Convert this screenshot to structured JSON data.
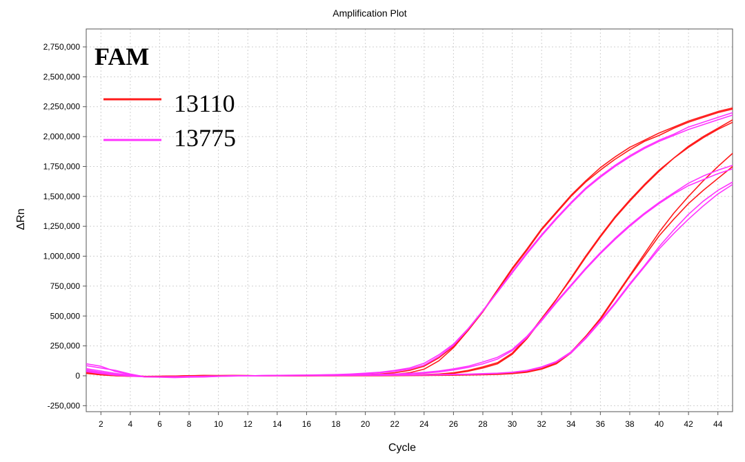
{
  "chart_data": {
    "type": "line",
    "title": "Amplification Plot",
    "xlabel": "Cycle",
    "ylabel": "ΔRn",
    "xlim": [
      1,
      45
    ],
    "ylim": [
      -300000,
      2900000
    ],
    "xticks": [
      2,
      4,
      6,
      8,
      10,
      12,
      14,
      16,
      18,
      20,
      22,
      24,
      26,
      28,
      30,
      32,
      34,
      36,
      38,
      40,
      42,
      44
    ],
    "yticks": [
      -250000,
      0,
      250000,
      500000,
      750000,
      1000000,
      1250000,
      1500000,
      1750000,
      2000000,
      2250000,
      2500000,
      2750000
    ],
    "ytick_labels": [
      "-250,000",
      "0",
      "250,000",
      "500,000",
      "750,000",
      "1,000,000",
      "1,250,000",
      "1,500,000",
      "1,750,000",
      "2,000,000",
      "2,250,000",
      "2,500,000",
      "2,750,000"
    ],
    "grid": true,
    "dye_label": "FAM",
    "legend_position": "top-left",
    "legend": [
      {
        "name": "13110",
        "color": "#ff1a1a"
      },
      {
        "name": "13775",
        "color": "#ff33ff"
      }
    ],
    "series": [
      {
        "group": "13110",
        "color": "#ff1a1a",
        "x": [
          1,
          2,
          3,
          4,
          5,
          6,
          7,
          8,
          9,
          10,
          11,
          12,
          13,
          14,
          15,
          16,
          17,
          18,
          19,
          20,
          21,
          22,
          23,
          24,
          25,
          26,
          27,
          28,
          29,
          30,
          31,
          32,
          33,
          34,
          35,
          36,
          37,
          38,
          39,
          40,
          41,
          42,
          43,
          44,
          45
        ],
        "y": [
          40000,
          25000,
          12000,
          5000,
          -5000,
          -8000,
          -5000,
          0,
          3000,
          2000,
          3000,
          2000,
          0,
          3000,
          1000,
          2000,
          3000,
          4000,
          6000,
          10000,
          15000,
          25000,
          45000,
          80000,
          150000,
          245000,
          380000,
          535000,
          710000,
          890000,
          1050000,
          1220000,
          1360000,
          1500000,
          1620000,
          1720000,
          1810000,
          1890000,
          1960000,
          2010000,
          2070000,
          2120000,
          2160000,
          2200000,
          2230000
        ]
      },
      {
        "group": "13110",
        "color": "#ff1a1a",
        "x": [
          1,
          2,
          3,
          4,
          5,
          6,
          7,
          8,
          9,
          10,
          11,
          12,
          13,
          14,
          15,
          16,
          17,
          18,
          19,
          20,
          21,
          22,
          23,
          24,
          25,
          26,
          27,
          28,
          29,
          30,
          31,
          32,
          33,
          34,
          35,
          36,
          37,
          38,
          39,
          40,
          41,
          42,
          43,
          44,
          45
        ],
        "y": [
          30000,
          15000,
          5000,
          0,
          -6000,
          -6000,
          -3000,
          1000,
          2000,
          1000,
          2000,
          1000,
          0,
          2000,
          1000,
          1000,
          2000,
          3000,
          4000,
          6000,
          8000,
          12000,
          25000,
          55000,
          125000,
          235000,
          380000,
          540000,
          720000,
          900000,
          1060000,
          1230000,
          1370000,
          1510000,
          1630000,
          1740000,
          1830000,
          1910000,
          1970000,
          2030000,
          2080000,
          2130000,
          2170000,
          2210000,
          2240000
        ]
      },
      {
        "group": "13110",
        "color": "#ff1a1a",
        "x": [
          1,
          2,
          3,
          4,
          5,
          6,
          7,
          8,
          9,
          10,
          11,
          12,
          13,
          14,
          15,
          16,
          17,
          18,
          19,
          20,
          21,
          22,
          23,
          24,
          25,
          26,
          27,
          28,
          29,
          30,
          31,
          32,
          33,
          34,
          35,
          36,
          37,
          38,
          39,
          40,
          41,
          42,
          43,
          44,
          45
        ],
        "y": [
          25000,
          10000,
          2000,
          -3000,
          -5000,
          -4000,
          -2000,
          0,
          1000,
          1000,
          1000,
          1000,
          0,
          1000,
          0,
          1000,
          1000,
          1000,
          2000,
          2000,
          3000,
          4000,
          6000,
          10000,
          15000,
          25000,
          45000,
          75000,
          110000,
          190000,
          320000,
          480000,
          640000,
          820000,
          1000000,
          1170000,
          1330000,
          1470000,
          1600000,
          1720000,
          1820000,
          1920000,
          2000000,
          2070000,
          2140000
        ]
      },
      {
        "group": "13110",
        "color": "#ff1a1a",
        "x": [
          1,
          2,
          3,
          4,
          5,
          6,
          7,
          8,
          9,
          10,
          11,
          12,
          13,
          14,
          15,
          16,
          17,
          18,
          19,
          20,
          21,
          22,
          23,
          24,
          25,
          26,
          27,
          28,
          29,
          30,
          31,
          32,
          33,
          34,
          35,
          36,
          37,
          38,
          39,
          40,
          41,
          42,
          43,
          44,
          45
        ],
        "y": [
          20000,
          8000,
          0,
          -4000,
          -6000,
          -5000,
          -3000,
          0,
          1000,
          0,
          1000,
          0,
          -1000,
          1000,
          0,
          0,
          1000,
          1000,
          1000,
          2000,
          2000,
          3000,
          5000,
          8000,
          12000,
          20000,
          38000,
          65000,
          100000,
          180000,
          310000,
          470000,
          640000,
          810000,
          990000,
          1160000,
          1320000,
          1460000,
          1590000,
          1710000,
          1820000,
          1910000,
          1990000,
          2060000,
          2120000
        ]
      },
      {
        "group": "13110",
        "color": "#ff1a1a",
        "x": [
          1,
          2,
          3,
          4,
          5,
          6,
          7,
          8,
          9,
          10,
          11,
          12,
          13,
          14,
          15,
          16,
          17,
          18,
          19,
          20,
          21,
          22,
          23,
          24,
          25,
          26,
          27,
          28,
          29,
          30,
          31,
          32,
          33,
          34,
          35,
          36,
          37,
          38,
          39,
          40,
          41,
          42,
          43,
          44,
          45
        ],
        "y": [
          30000,
          12000,
          3000,
          -2000,
          -5000,
          -5000,
          -3000,
          0,
          1000,
          1000,
          1000,
          1000,
          0,
          1000,
          0,
          1000,
          1000,
          1000,
          1000,
          1000,
          1000,
          2000,
          3000,
          4000,
          5000,
          6000,
          8000,
          10000,
          14000,
          20000,
          35000,
          60000,
          110000,
          200000,
          330000,
          480000,
          660000,
          840000,
          1020000,
          1200000,
          1360000,
          1500000,
          1630000,
          1750000,
          1860000
        ]
      },
      {
        "group": "13110",
        "color": "#ff1a1a",
        "x": [
          1,
          2,
          3,
          4,
          5,
          6,
          7,
          8,
          9,
          10,
          11,
          12,
          13,
          14,
          15,
          16,
          17,
          18,
          19,
          20,
          21,
          22,
          23,
          24,
          25,
          26,
          27,
          28,
          29,
          30,
          31,
          32,
          33,
          34,
          35,
          36,
          37,
          38,
          39,
          40,
          41,
          42,
          43,
          44,
          45
        ],
        "y": [
          22000,
          8000,
          1000,
          -3000,
          -5000,
          -4000,
          -2000,
          0,
          1000,
          0,
          1000,
          0,
          0,
          1000,
          0,
          0,
          1000,
          1000,
          1000,
          1000,
          1000,
          1000,
          2000,
          3000,
          4000,
          5000,
          7000,
          9000,
          12000,
          18000,
          30000,
          55000,
          100000,
          190000,
          320000,
          470000,
          650000,
          830000,
          1000000,
          1170000,
          1310000,
          1440000,
          1550000,
          1650000,
          1750000
        ]
      },
      {
        "group": "13775",
        "color": "#ff33ff",
        "x": [
          1,
          2,
          3,
          4,
          5,
          6,
          7,
          8,
          9,
          10,
          11,
          12,
          13,
          14,
          15,
          16,
          17,
          18,
          19,
          20,
          21,
          22,
          23,
          24,
          25,
          26,
          27,
          28,
          29,
          30,
          31,
          32,
          33,
          34,
          35,
          36,
          37,
          38,
          39,
          40,
          41,
          42,
          43,
          44,
          45
        ],
        "y": [
          100000,
          80000,
          35000,
          10000,
          -10000,
          -12000,
          -15000,
          -12000,
          -10000,
          -5000,
          -2000,
          0,
          2000,
          4000,
          5000,
          6000,
          8000,
          10000,
          15000,
          22000,
          30000,
          45000,
          65000,
          105000,
          175000,
          265000,
          395000,
          545000,
          705000,
          870000,
          1030000,
          1180000,
          1320000,
          1450000,
          1570000,
          1670000,
          1760000,
          1840000,
          1910000,
          1970000,
          2020000,
          2080000,
          2120000,
          2160000,
          2200000
        ]
      },
      {
        "group": "13775",
        "color": "#ff33ff",
        "x": [
          1,
          2,
          3,
          4,
          5,
          6,
          7,
          8,
          9,
          10,
          11,
          12,
          13,
          14,
          15,
          16,
          17,
          18,
          19,
          20,
          21,
          22,
          23,
          24,
          25,
          26,
          27,
          28,
          29,
          30,
          31,
          32,
          33,
          34,
          35,
          36,
          37,
          38,
          39,
          40,
          41,
          42,
          43,
          44,
          45
        ],
        "y": [
          85000,
          65000,
          45000,
          15000,
          -8000,
          -10000,
          -12000,
          -10000,
          -8000,
          -4000,
          -2000,
          0,
          2000,
          3000,
          4000,
          5000,
          7000,
          9000,
          12000,
          18000,
          25000,
          38000,
          55000,
          90000,
          160000,
          255000,
          390000,
          540000,
          700000,
          860000,
          1020000,
          1170000,
          1310000,
          1440000,
          1560000,
          1660000,
          1750000,
          1830000,
          1900000,
          1960000,
          2010000,
          2060000,
          2100000,
          2140000,
          2180000
        ]
      },
      {
        "group": "13775",
        "color": "#ff33ff",
        "x": [
          1,
          2,
          3,
          4,
          5,
          6,
          7,
          8,
          9,
          10,
          11,
          12,
          13,
          14,
          15,
          16,
          17,
          18,
          19,
          20,
          21,
          22,
          23,
          24,
          25,
          26,
          27,
          28,
          29,
          30,
          31,
          32,
          33,
          34,
          35,
          36,
          37,
          38,
          39,
          40,
          41,
          42,
          43,
          44,
          45
        ],
        "y": [
          60000,
          40000,
          20000,
          5000,
          -8000,
          -10000,
          -10000,
          -8000,
          -6000,
          -3000,
          -1000,
          0,
          1000,
          2000,
          3000,
          4000,
          5000,
          6000,
          8000,
          10000,
          12000,
          15000,
          20000,
          28000,
          40000,
          58000,
          80000,
          115000,
          155000,
          220000,
          330000,
          470000,
          620000,
          760000,
          900000,
          1030000,
          1150000,
          1260000,
          1360000,
          1450000,
          1530000,
          1610000,
          1670000,
          1720000,
          1760000
        ]
      },
      {
        "group": "13775",
        "color": "#ff33ff",
        "x": [
          1,
          2,
          3,
          4,
          5,
          6,
          7,
          8,
          9,
          10,
          11,
          12,
          13,
          14,
          15,
          16,
          17,
          18,
          19,
          20,
          21,
          22,
          23,
          24,
          25,
          26,
          27,
          28,
          29,
          30,
          31,
          32,
          33,
          34,
          35,
          36,
          37,
          38,
          39,
          40,
          41,
          42,
          43,
          44,
          45
        ],
        "y": [
          50000,
          30000,
          12000,
          2000,
          -8000,
          -10000,
          -10000,
          -8000,
          -5000,
          -3000,
          -1000,
          0,
          1000,
          2000,
          2000,
          3000,
          4000,
          5000,
          6000,
          8000,
          10000,
          12000,
          16000,
          22000,
          32000,
          48000,
          70000,
          100000,
          140000,
          210000,
          320000,
          460000,
          610000,
          750000,
          890000,
          1020000,
          1140000,
          1250000,
          1350000,
          1440000,
          1520000,
          1590000,
          1640000,
          1690000,
          1730000
        ]
      },
      {
        "group": "13775",
        "color": "#ff33ff",
        "x": [
          1,
          2,
          3,
          4,
          5,
          6,
          7,
          8,
          9,
          10,
          11,
          12,
          13,
          14,
          15,
          16,
          17,
          18,
          19,
          20,
          21,
          22,
          23,
          24,
          25,
          26,
          27,
          28,
          29,
          30,
          31,
          32,
          33,
          34,
          35,
          36,
          37,
          38,
          39,
          40,
          41,
          42,
          43,
          44,
          45
        ],
        "y": [
          45000,
          25000,
          10000,
          0,
          -8000,
          -10000,
          -8000,
          -6000,
          -4000,
          -2000,
          0,
          0,
          1000,
          1000,
          2000,
          2000,
          3000,
          3000,
          4000,
          5000,
          5000,
          6000,
          7000,
          8000,
          10000,
          12000,
          14000,
          18000,
          22000,
          30000,
          45000,
          75000,
          120000,
          200000,
          320000,
          460000,
          610000,
          770000,
          920000,
          1080000,
          1220000,
          1350000,
          1460000,
          1550000,
          1620000
        ]
      },
      {
        "group": "13775",
        "color": "#ff33ff",
        "x": [
          1,
          2,
          3,
          4,
          5,
          6,
          7,
          8,
          9,
          10,
          11,
          12,
          13,
          14,
          15,
          16,
          17,
          18,
          19,
          20,
          21,
          22,
          23,
          24,
          25,
          26,
          27,
          28,
          29,
          30,
          31,
          32,
          33,
          34,
          35,
          36,
          37,
          38,
          39,
          40,
          41,
          42,
          43,
          44,
          45
        ],
        "y": [
          35000,
          18000,
          5000,
          -3000,
          -8000,
          -10000,
          -8000,
          -6000,
          -4000,
          -2000,
          0,
          0,
          1000,
          1000,
          1000,
          2000,
          2000,
          3000,
          3000,
          4000,
          4000,
          5000,
          6000,
          7000,
          8000,
          10000,
          12000,
          15000,
          20000,
          28000,
          42000,
          70000,
          115000,
          190000,
          310000,
          450000,
          600000,
          760000,
          910000,
          1060000,
          1190000,
          1310000,
          1420000,
          1520000,
          1600000
        ]
      }
    ]
  }
}
